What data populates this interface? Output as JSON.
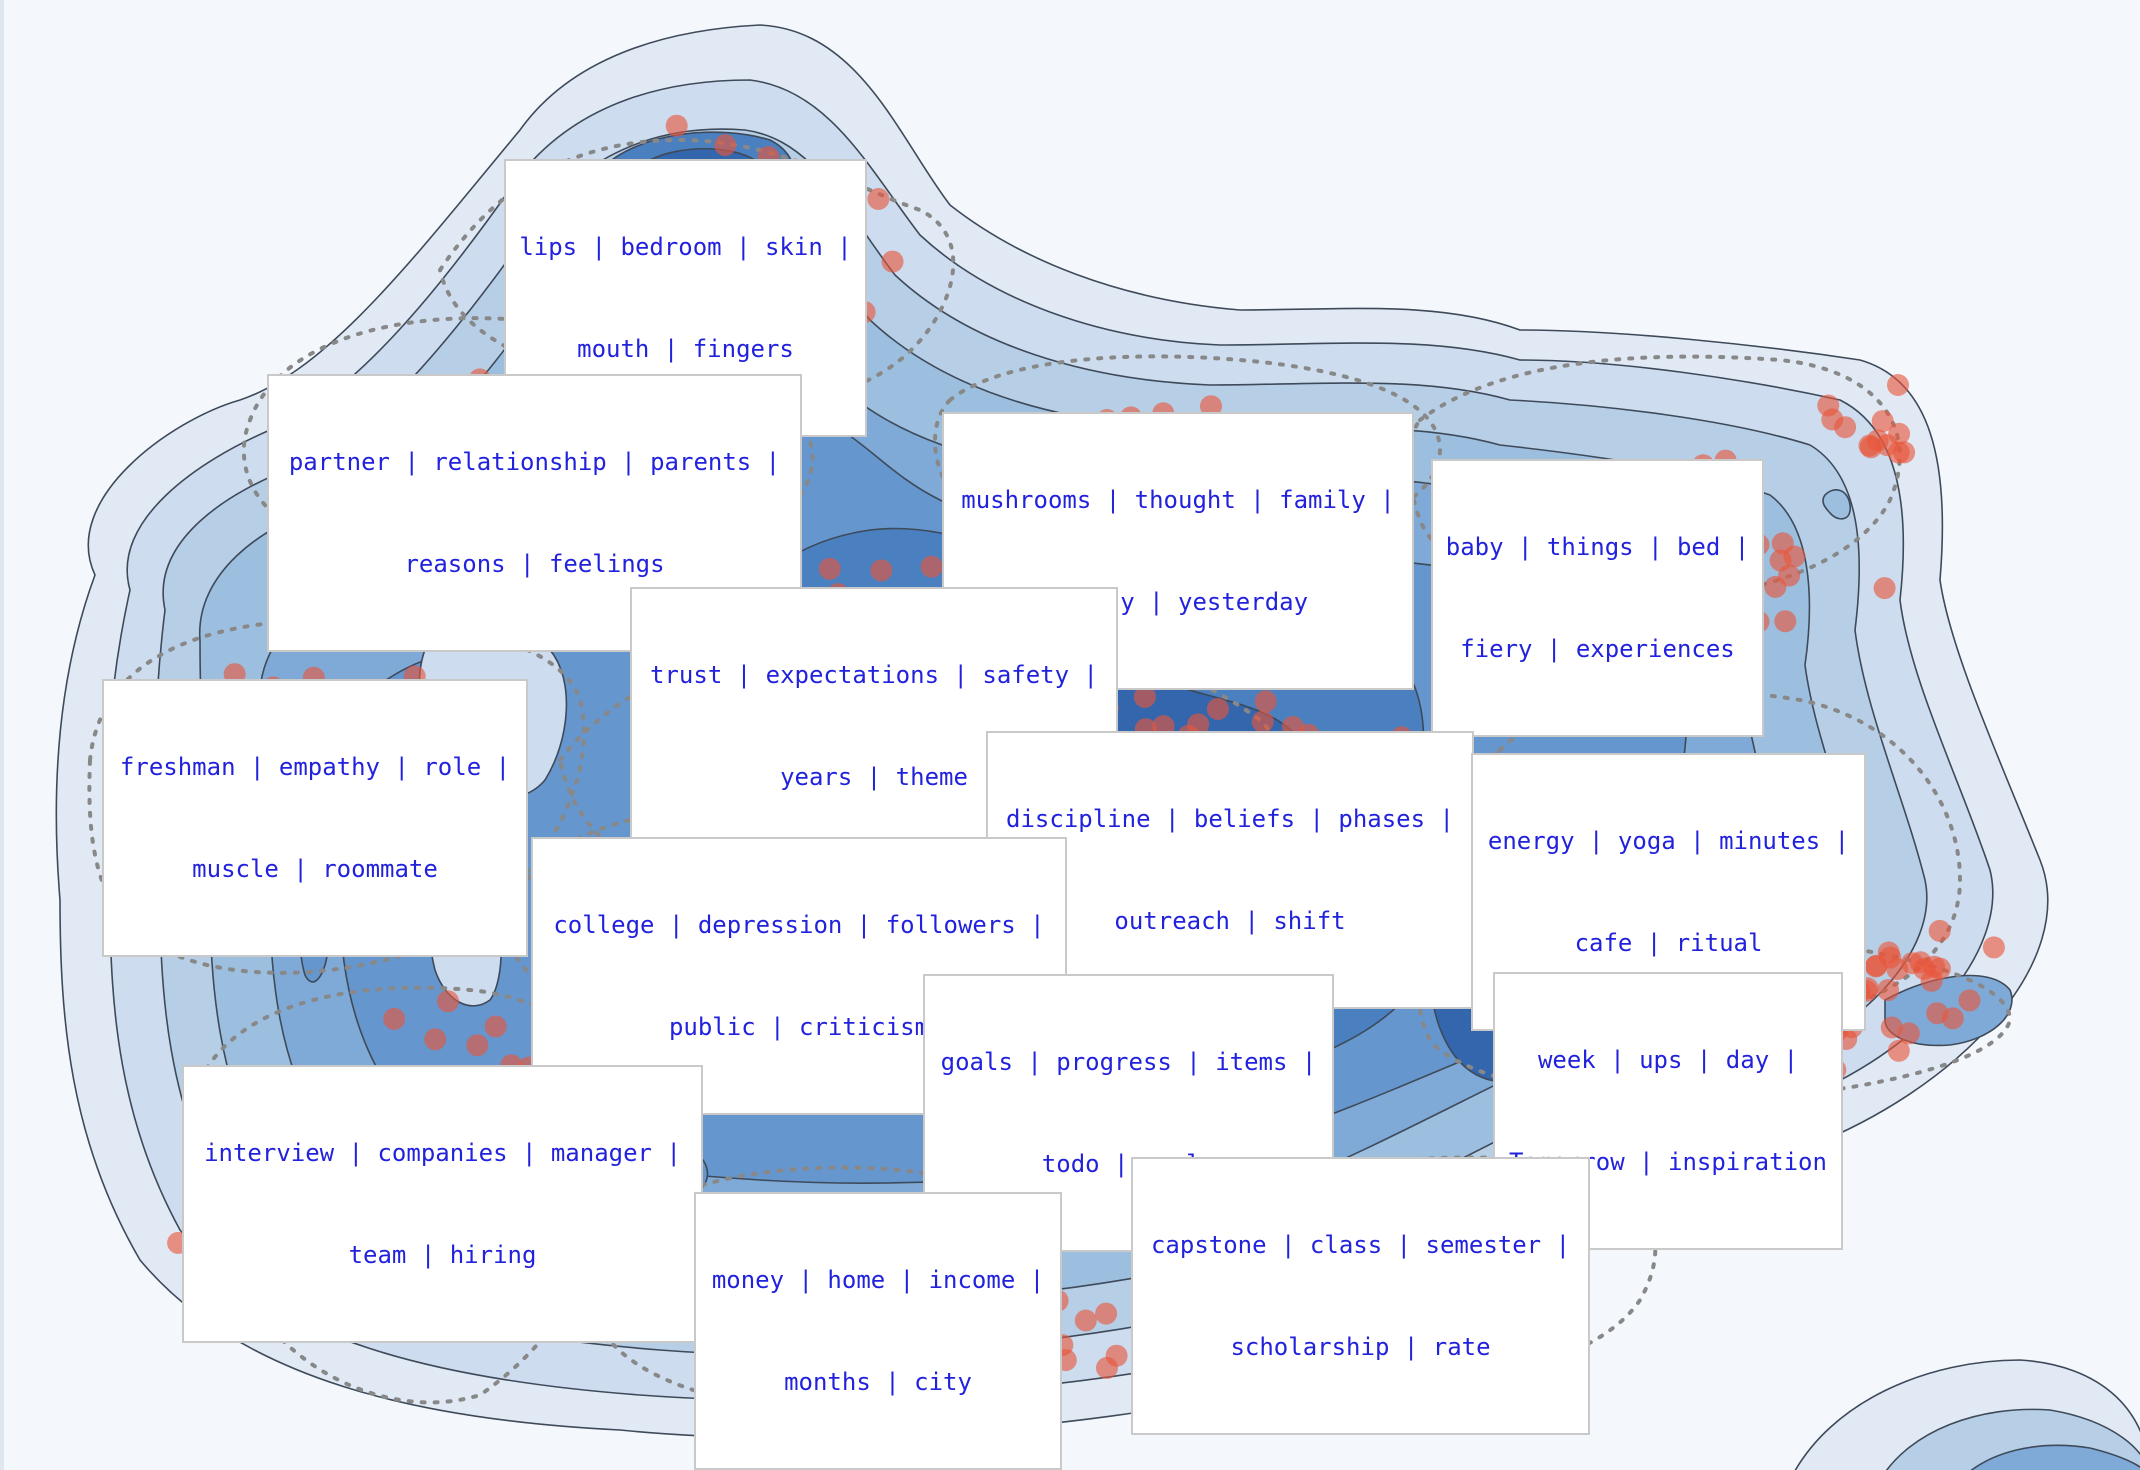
{
  "topics": [
    {
      "id": "t1",
      "line1": "lips | bedroom | skin |",
      "line2": "mouth | fingers"
    },
    {
      "id": "t2",
      "line1": "partner | relationship | parents |",
      "line2": "reasons | feelings"
    },
    {
      "id": "t3",
      "line1": "mushrooms | thought | family |",
      "line2": "beauty | yesterday"
    },
    {
      "id": "t4",
      "line1": "baby | things | bed |",
      "line2": "fiery | experiences"
    },
    {
      "id": "t5",
      "line1": "trust | expectations | safety |",
      "line2": "years | theme"
    },
    {
      "id": "t6",
      "line1": "freshman | empathy | role |",
      "line2": "muscle | roommate"
    },
    {
      "id": "t7",
      "line1": "discipline | beliefs | phases |",
      "line2": "outreach | shift"
    },
    {
      "id": "t8",
      "line1": "energy | yoga | minutes |",
      "line2": "cafe | ritual"
    },
    {
      "id": "t9",
      "line1": "college | depression | followers |",
      "line2": "public | criticism"
    },
    {
      "id": "t10",
      "line1": "goals | progress | items |",
      "line2": "todo | reels"
    },
    {
      "id": "t11",
      "line1": "week | ups | day |",
      "line2": "Tomorrow | inspiration"
    },
    {
      "id": "t12",
      "line1": "interview | companies | manager |",
      "line2": "team | hiring"
    },
    {
      "id": "t13",
      "line1": "capstone | class | semester |",
      "line2": "scholarship | rate"
    },
    {
      "id": "t14",
      "line1": "money | home | income |",
      "line2": "months | city"
    }
  ],
  "colors": {
    "background": "#f4f8fc",
    "density_levels": [
      "#e1eaf4",
      "#cddcee",
      "#b7cfe6",
      "#9cbfdf",
      "#7faad7",
      "#6596cd",
      "#4a7fc0",
      "#3366ad",
      "#254f96",
      "#1b3a78"
    ],
    "point": "#e8553a",
    "label_text": "#2222dd",
    "cluster_outline": "#888888",
    "arrow": "#f08a24"
  }
}
